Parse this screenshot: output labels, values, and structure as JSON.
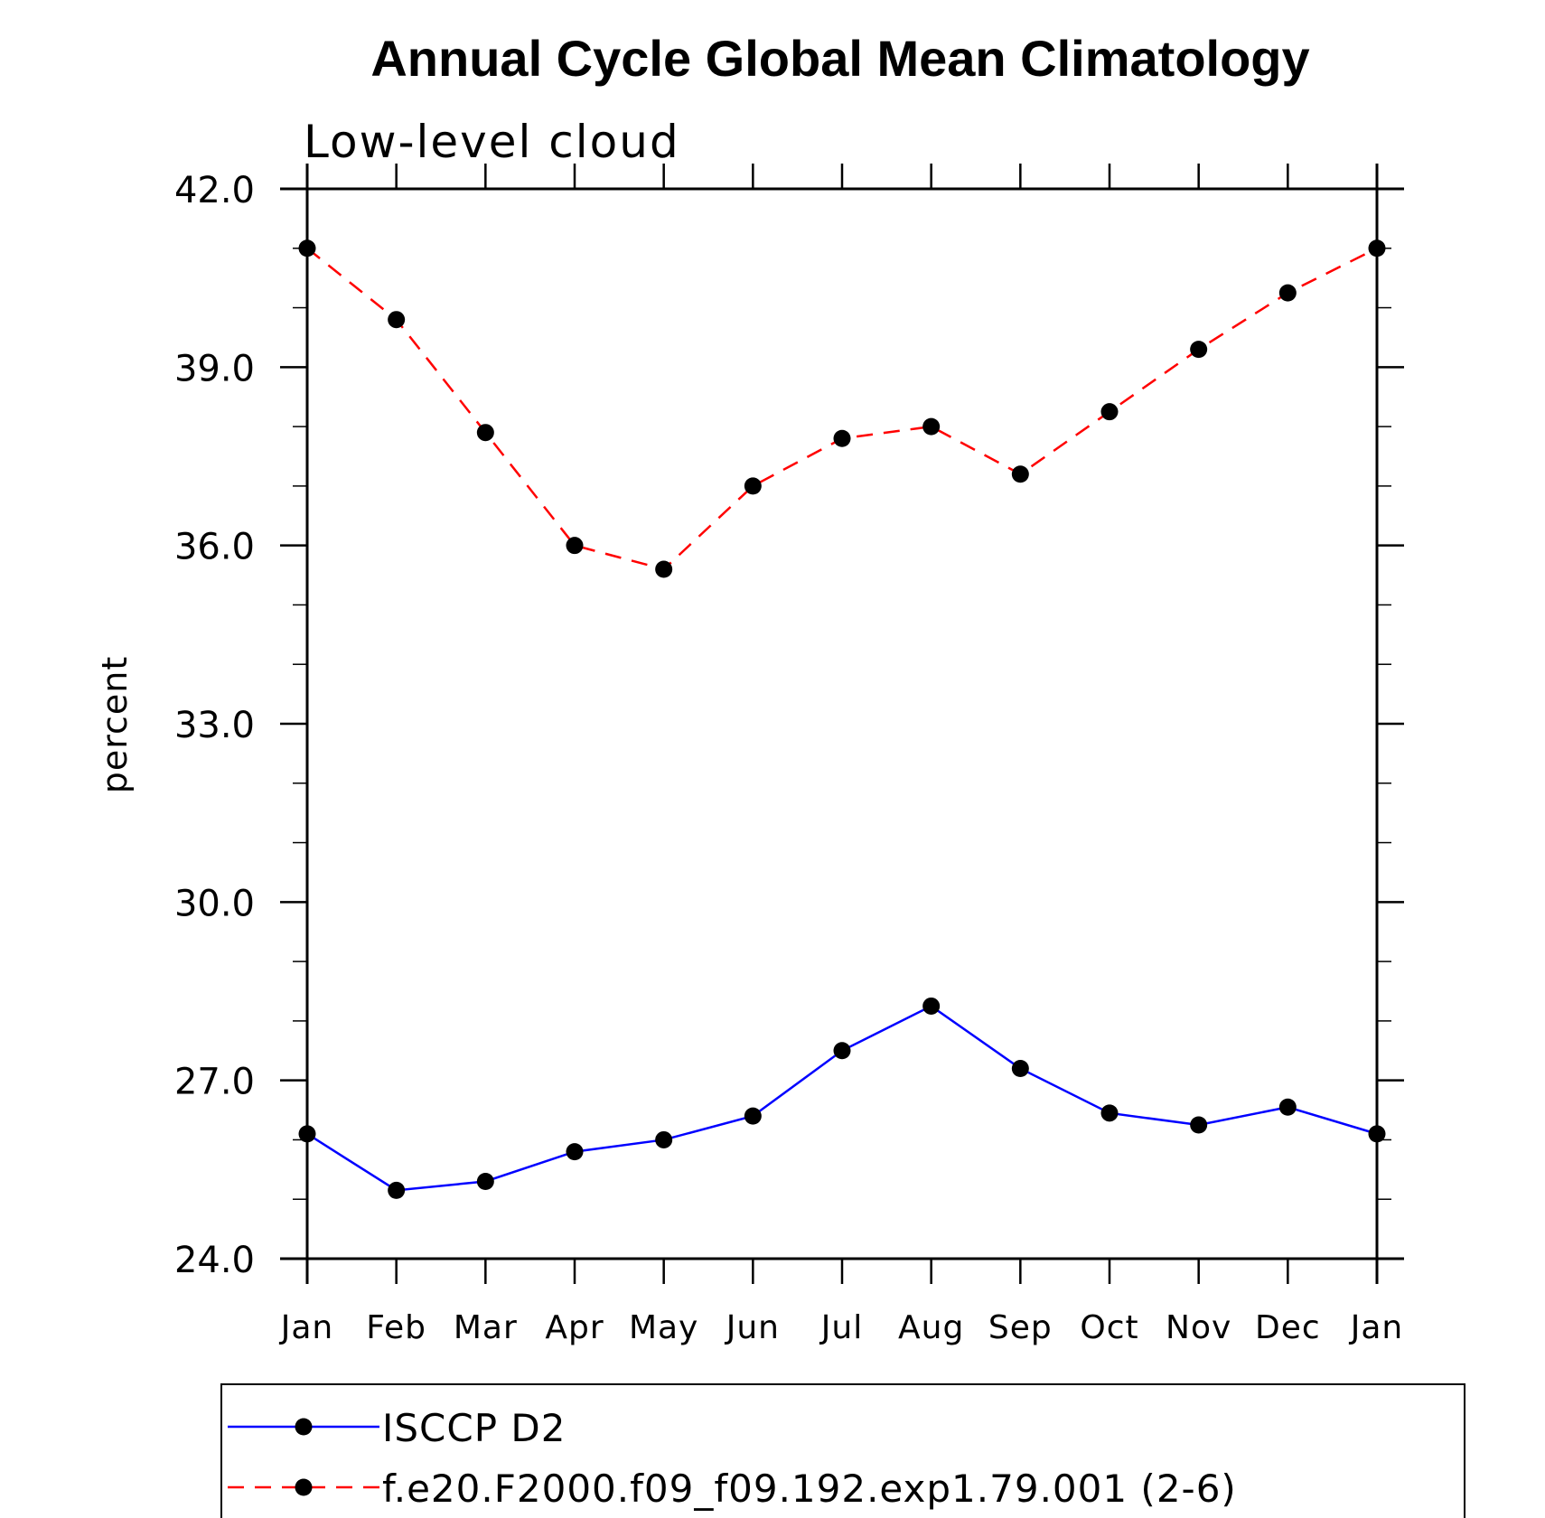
{
  "chart_data": {
    "type": "line",
    "title": "Annual Cycle Global Mean Climatology",
    "subtitle": "Low-level cloud",
    "xlabel": "",
    "ylabel": "percent",
    "categories": [
      "Jan",
      "Feb",
      "Mar",
      "Apr",
      "May",
      "Jun",
      "Jul",
      "Aug",
      "Sep",
      "Oct",
      "Nov",
      "Dec",
      "Jan"
    ],
    "ylim": [
      24.0,
      42.0
    ],
    "yticks": [
      "24.0",
      "27.0",
      "30.0",
      "33.0",
      "36.0",
      "39.0",
      "42.0"
    ],
    "ytick_values": [
      24.0,
      27.0,
      30.0,
      33.0,
      36.0,
      39.0,
      42.0
    ],
    "grid": false,
    "legend_position": "bottom",
    "series": [
      {
        "name": "ISCCP D2",
        "color": "#0000ff",
        "dash": "solid",
        "marker": "filled-circle",
        "values": [
          26.1,
          25.15,
          25.3,
          25.8,
          26.0,
          26.4,
          27.5,
          28.25,
          27.2,
          26.45,
          26.25,
          26.55,
          26.1
        ]
      },
      {
        "name": "f.e20.F2000.f09_f09.192.exp1.79.001 (2-6)",
        "color": "#ff0000",
        "dash": "dashed",
        "marker": "filled-circle",
        "values": [
          41.0,
          39.8,
          37.9,
          36.0,
          35.6,
          37.0,
          37.8,
          38.0,
          37.2,
          38.25,
          39.3,
          40.25,
          41.0
        ]
      }
    ]
  }
}
